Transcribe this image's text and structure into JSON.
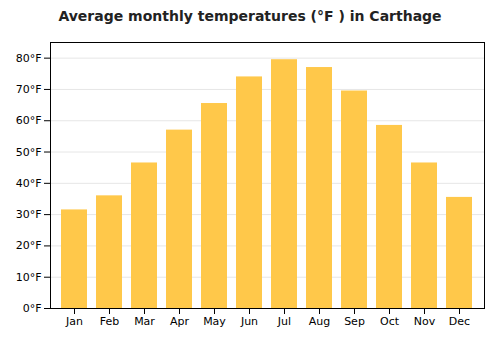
{
  "chart_data": {
    "type": "bar",
    "title": "Average monthly temperatures (°F ) in Carthage",
    "categories": [
      "Jan",
      "Feb",
      "Mar",
      "Apr",
      "May",
      "Jun",
      "Jul",
      "Aug",
      "Sep",
      "Oct",
      "Nov",
      "Dec"
    ],
    "values": [
      31.5,
      36,
      46.5,
      57,
      65.5,
      74,
      79.5,
      77,
      69.5,
      58.5,
      46.5,
      35.5
    ],
    "color": "#FFC84A",
    "ylim": [
      0,
      85
    ],
    "yticks": [
      {
        "value": 0,
        "label": "0°F"
      },
      {
        "value": 10,
        "label": "10°F"
      },
      {
        "value": 20,
        "label": "20°F"
      },
      {
        "value": 30,
        "label": "30°F"
      },
      {
        "value": 40,
        "label": "40°F"
      },
      {
        "value": 50,
        "label": "50°F"
      },
      {
        "value": 60,
        "label": "60°F"
      },
      {
        "value": 70,
        "label": "70°F"
      },
      {
        "value": 80,
        "label": "80°F"
      }
    ],
    "grid": true
  }
}
